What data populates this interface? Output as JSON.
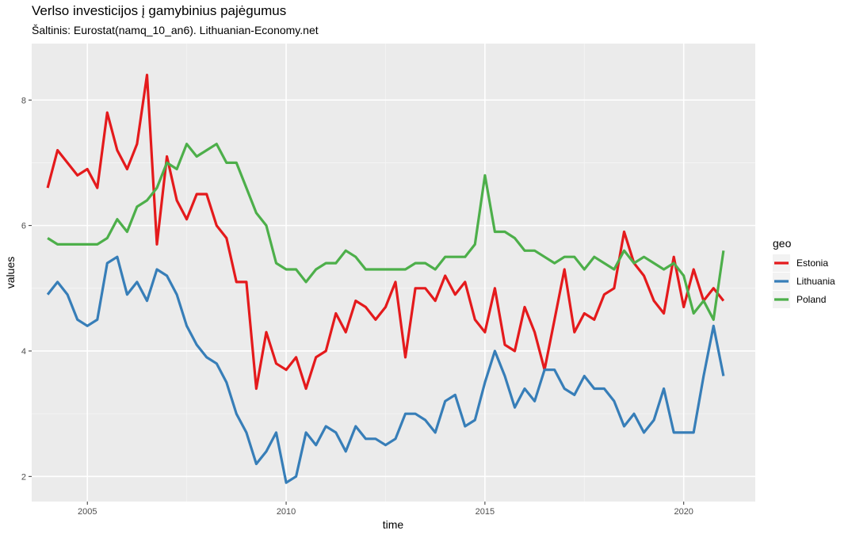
{
  "chart_data": {
    "type": "line",
    "title": "Verlso investicijos į gamybinius pajėgumus",
    "subtitle": "Šaltinis: Eurostat(namq_10_an6). Lithuanian-Economy.net",
    "xlabel": "time",
    "ylabel": "values",
    "xlim": [
      2003.6,
      2021.8
    ],
    "ylim": [
      1.6,
      8.9
    ],
    "x_ticks": [
      2005,
      2010,
      2015,
      2020
    ],
    "x_tick_labels": [
      "2005",
      "2010",
      "2015",
      "2020"
    ],
    "y_ticks": [
      2,
      4,
      6,
      8
    ],
    "y_tick_labels": [
      "2",
      "4",
      "6",
      "8"
    ],
    "grid": true,
    "legend_title": "geo",
    "legend_position": "right",
    "x": [
      2004.0,
      2004.25,
      2004.5,
      2004.75,
      2005.0,
      2005.25,
      2005.5,
      2005.75,
      2006.0,
      2006.25,
      2006.5,
      2006.75,
      2007.0,
      2007.25,
      2007.5,
      2007.75,
      2008.0,
      2008.25,
      2008.5,
      2008.75,
      2009.0,
      2009.25,
      2009.5,
      2009.75,
      2010.0,
      2010.25,
      2010.5,
      2010.75,
      2011.0,
      2011.25,
      2011.5,
      2011.75,
      2012.0,
      2012.25,
      2012.5,
      2012.75,
      2013.0,
      2013.25,
      2013.5,
      2013.75,
      2014.0,
      2014.25,
      2014.5,
      2014.75,
      2015.0,
      2015.25,
      2015.5,
      2015.75,
      2016.0,
      2016.25,
      2016.5,
      2016.75,
      2017.0,
      2017.25,
      2017.5,
      2017.75,
      2018.0,
      2018.25,
      2018.5,
      2018.75,
      2019.0,
      2019.25,
      2019.5,
      2019.75,
      2020.0,
      2020.25,
      2020.5,
      2020.75,
      2021.0
    ],
    "series": [
      {
        "name": "Estonia",
        "color": "#e41a1c",
        "values": [
          6.6,
          7.2,
          7.0,
          6.8,
          6.9,
          6.6,
          7.8,
          7.2,
          6.9,
          7.3,
          8.4,
          5.7,
          7.1,
          6.4,
          6.1,
          6.5,
          6.5,
          6.0,
          5.8,
          5.1,
          5.1,
          3.4,
          4.3,
          3.8,
          3.7,
          3.9,
          3.4,
          3.9,
          4.0,
          4.6,
          4.3,
          4.8,
          4.7,
          4.5,
          4.7,
          5.1,
          3.9,
          5.0,
          5.0,
          4.8,
          5.2,
          4.9,
          5.1,
          4.5,
          4.3,
          5.0,
          4.1,
          4.0,
          4.7,
          4.3,
          3.7,
          4.5,
          5.3,
          4.3,
          4.6,
          4.5,
          4.9,
          5.0,
          5.9,
          5.4,
          5.2,
          4.8,
          4.6,
          5.5,
          4.7,
          5.3,
          4.8,
          5.0,
          4.8
        ]
      },
      {
        "name": "Lithuania",
        "color": "#377eb8",
        "values": [
          4.9,
          5.1,
          4.9,
          4.5,
          4.4,
          4.5,
          5.4,
          5.5,
          4.9,
          5.1,
          4.8,
          5.3,
          5.2,
          4.9,
          4.4,
          4.1,
          3.9,
          3.8,
          3.5,
          3.0,
          2.7,
          2.2,
          2.4,
          2.7,
          1.9,
          2.0,
          2.7,
          2.5,
          2.8,
          2.7,
          2.4,
          2.8,
          2.6,
          2.6,
          2.5,
          2.6,
          3.0,
          3.0,
          2.9,
          2.7,
          3.2,
          3.3,
          2.8,
          2.9,
          3.5,
          4.0,
          3.6,
          3.1,
          3.4,
          3.2,
          3.7,
          3.7,
          3.4,
          3.3,
          3.6,
          3.4,
          3.4,
          3.2,
          2.8,
          3.0,
          2.7,
          2.9,
          3.4,
          2.7,
          2.7,
          2.7,
          3.6,
          4.4,
          3.6
        ]
      },
      {
        "name": "Poland",
        "color": "#4daf4a",
        "values": [
          5.8,
          5.7,
          5.7,
          5.7,
          5.7,
          5.7,
          5.8,
          6.1,
          5.9,
          6.3,
          6.4,
          6.6,
          7.0,
          6.9,
          7.3,
          7.1,
          7.2,
          7.3,
          7.0,
          7.0,
          6.6,
          6.2,
          6.0,
          5.4,
          5.3,
          5.3,
          5.1,
          5.3,
          5.4,
          5.4,
          5.6,
          5.5,
          5.3,
          5.3,
          5.3,
          5.3,
          5.3,
          5.4,
          5.4,
          5.3,
          5.5,
          5.5,
          5.5,
          5.7,
          6.8,
          5.9,
          5.9,
          5.8,
          5.6,
          5.6,
          5.5,
          5.4,
          5.5,
          5.5,
          5.3,
          5.5,
          5.4,
          5.3,
          5.6,
          5.4,
          5.5,
          5.4,
          5.3,
          5.4,
          5.2,
          4.6,
          4.8,
          4.5,
          5.6
        ]
      }
    ]
  }
}
